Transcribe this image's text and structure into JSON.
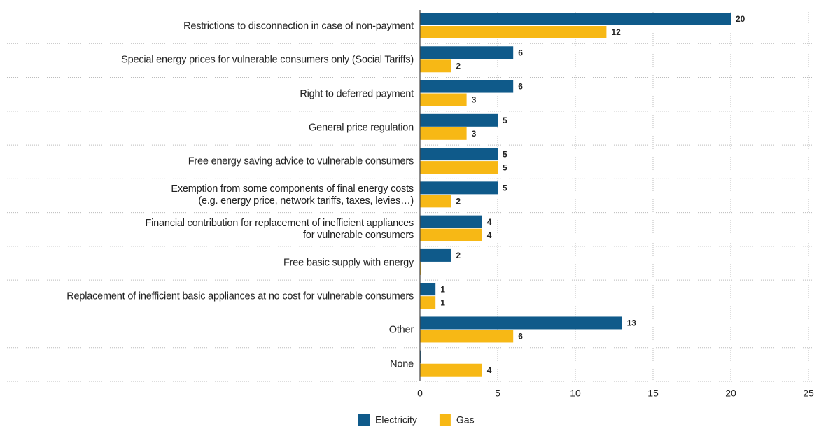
{
  "chart_data": {
    "type": "hbar",
    "categories": [
      "Restrictions to disconnection in case of non-payment",
      "Special energy prices for vulnerable consumers only (Social Tariffs)",
      "Right to deferred payment",
      "General price regulation",
      "Free energy saving advice to vulnerable consumers",
      "Exemption from some components of final energy costs\n(e.g. energy price, network tariffs, taxes, levies…)",
      "Financial contribution for replacement of inefficient appliances\nfor vulnerable consumers",
      "Free basic supply with energy",
      "Replacement of inefficient basic appliances at no cost for vulnerable consumers",
      "Other",
      "None"
    ],
    "series": [
      {
        "name": "Electricity",
        "color": "#0f5a8a",
        "values": [
          20,
          6,
          6,
          5,
          5,
          5,
          4,
          2,
          1,
          13,
          0
        ]
      },
      {
        "name": "Gas",
        "color": "#f7b815",
        "values": [
          12,
          2,
          3,
          3,
          5,
          2,
          4,
          0,
          1,
          6,
          4
        ]
      }
    ],
    "xlim": [
      0,
      25
    ],
    "xticks": [
      0,
      5,
      10,
      15,
      20,
      25
    ],
    "grid": true,
    "legend": "bottom"
  }
}
